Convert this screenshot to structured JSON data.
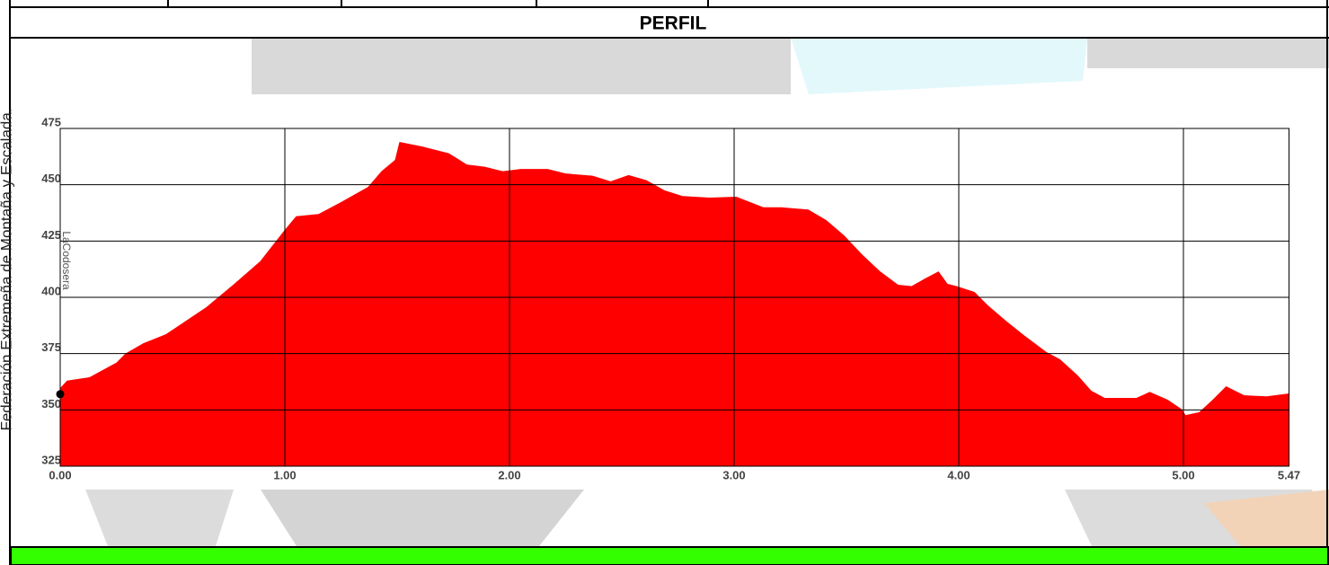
{
  "header": "PERFIL",
  "side_text": "Federación Extremeña de Montaña y Escalada.",
  "chart_data": {
    "type": "area",
    "color": "#ff0000",
    "x": [
      0.0,
      0.03,
      0.13,
      0.25,
      0.29,
      0.37,
      0.47,
      0.53,
      0.65,
      0.77,
      0.89,
      1.0,
      1.05,
      1.15,
      1.25,
      1.37,
      1.43,
      1.49,
      1.51,
      1.61,
      1.73,
      1.81,
      1.89,
      1.97,
      2.05,
      2.17,
      2.25,
      2.37,
      2.45,
      2.53,
      2.61,
      2.69,
      2.77,
      2.89,
      3.01,
      3.13,
      3.21,
      3.33,
      3.41,
      3.49,
      3.57,
      3.65,
      3.73,
      3.79,
      3.85,
      3.91,
      3.95,
      3.99,
      4.07,
      4.13,
      4.21,
      4.29,
      4.39,
      4.45,
      4.53,
      4.59,
      4.65,
      4.79,
      4.85,
      4.93,
      4.99,
      5.01,
      5.07,
      5.13,
      5.19,
      5.27,
      5.37,
      5.47
    ],
    "values": [
      359.7,
      363,
      364.5,
      371,
      375,
      379.6,
      383.6,
      387.6,
      395.6,
      405.6,
      416,
      430,
      436,
      437,
      442.3,
      449,
      456,
      461,
      469,
      467,
      464,
      459,
      458,
      456,
      457,
      457,
      455,
      454,
      451.5,
      454.3,
      452,
      447.5,
      445,
      444.3,
      444.7,
      440,
      440,
      439,
      434.3,
      427.5,
      419,
      411.5,
      405.6,
      405,
      408.4,
      411.5,
      406,
      405,
      402.4,
      396.4,
      389.6,
      383.2,
      375.7,
      372.5,
      365.3,
      358.5,
      355.3,
      355.3,
      358,
      354.5,
      350.5,
      347.7,
      349,
      354.5,
      360.5,
      356.5,
      356,
      357.3
    ],
    "marker": {
      "x": 0,
      "y": 357
    },
    "annotation": {
      "text": "LaCodosera",
      "x": 0
    },
    "xlim": [
      0,
      5.47
    ],
    "ylim": [
      325,
      475
    ],
    "xticks": [
      {
        "value": 0,
        "label": "0.00"
      },
      {
        "value": 1,
        "label": "1.00"
      },
      {
        "value": 2,
        "label": "2.00"
      },
      {
        "value": 3,
        "label": "3.00"
      },
      {
        "value": 4,
        "label": "4.00"
      },
      {
        "value": 5,
        "label": "5.00"
      },
      {
        "value": 5.47,
        "label": "5.47"
      }
    ],
    "yticks": [
      325,
      350,
      375,
      400,
      425,
      450,
      475
    ],
    "grid": true
  }
}
